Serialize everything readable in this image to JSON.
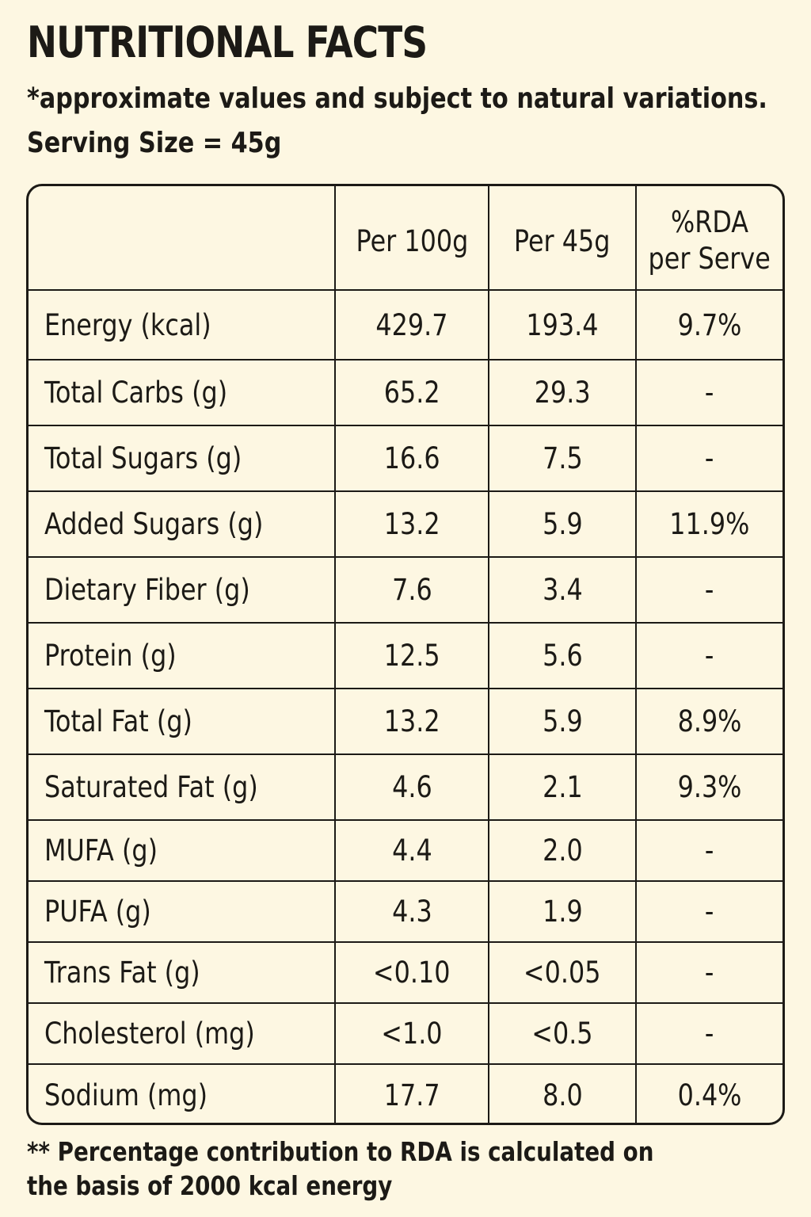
{
  "header": {
    "title": "NUTRITIONAL FACTS",
    "subtitle": "*approximate values and subject to natural variations.",
    "serving_size": "Serving Size = 45g"
  },
  "table": {
    "columns": [
      "",
      "Per 100g",
      "Per 45g",
      "%RDA",
      "per Serve"
    ],
    "rows": [
      {
        "nutrient": "Energy (kcal)",
        "per_100g": "429.7",
        "per_45g": "193.4",
        "rda": "9.7%"
      },
      {
        "nutrient": "Total Carbs (g)",
        "per_100g": "65.2",
        "per_45g": "29.3",
        "rda": "-"
      },
      {
        "nutrient": "Total Sugars (g)",
        "per_100g": "16.6",
        "per_45g": "7.5",
        "rda": "-"
      },
      {
        "nutrient": "Added Sugars (g)",
        "per_100g": "13.2",
        "per_45g": "5.9",
        "rda": "11.9%"
      },
      {
        "nutrient": "Dietary Fiber (g)",
        "per_100g": "7.6",
        "per_45g": "3.4",
        "rda": "-"
      },
      {
        "nutrient": "Protein (g)",
        "per_100g": "12.5",
        "per_45g": "5.6",
        "rda": "-"
      },
      {
        "nutrient": "Total Fat (g)",
        "per_100g": "13.2",
        "per_45g": "5.9",
        "rda": "8.9%"
      },
      {
        "nutrient": "Saturated Fat (g)",
        "per_100g": "4.6",
        "per_45g": "2.1",
        "rda": "9.3%"
      },
      {
        "nutrient": "MUFA (g)",
        "per_100g": "4.4",
        "per_45g": "2.0",
        "rda": "-"
      },
      {
        "nutrient": "PUFA (g)",
        "per_100g": "4.3",
        "per_45g": "1.9",
        "rda": "-"
      },
      {
        "nutrient": "Trans Fat (g)",
        "per_100g": "<0.10",
        "per_45g": "<0.05",
        "rda": "-"
      },
      {
        "nutrient": "Cholesterol (mg)",
        "per_100g": "<1.0",
        "per_45g": "<0.5",
        "rda": "-"
      },
      {
        "nutrient": "Sodium (mg)",
        "per_100g": "17.7",
        "per_45g": "8.0",
        "rda": "0.4%"
      }
    ]
  },
  "footnote": {
    "line1": "** Percentage contribution to RDA is calculated on",
    "line2": "the basis of 2000 kcal energy"
  },
  "colors": {
    "background": "#fdf7e2",
    "text": "#1c1a16",
    "border": "#1c1a16"
  }
}
